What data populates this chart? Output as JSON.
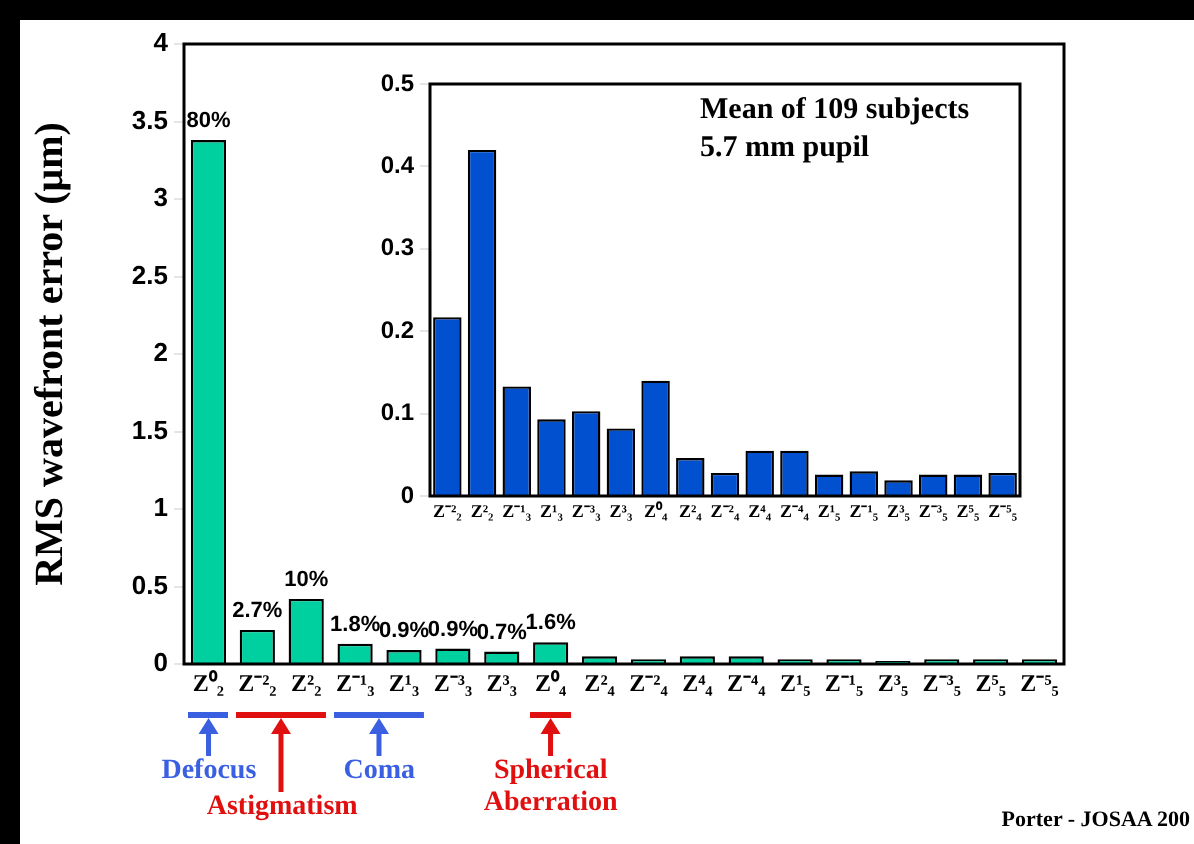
{
  "chart_data": [
    {
      "type": "bar",
      "ylabel": "RMS wavefront error (μm)",
      "categories": [
        "Z⁰₂",
        "Z⁻²₂",
        "Z²₂",
        "Z⁻¹₃",
        "Z¹₃",
        "Z⁻³₃",
        "Z³₃",
        "Z⁰₄",
        "Z²₄",
        "Z⁻²₄",
        "Z⁴₄",
        "Z⁻⁴₄",
        "Z¹₅",
        "Z⁻¹₅",
        "Z³₅",
        "Z⁻³₅",
        "Z⁵₅",
        "Z⁻⁵₅"
      ],
      "values": [
        3.38,
        0.22,
        0.42,
        0.13,
        0.09,
        0.1,
        0.08,
        0.14,
        0.05,
        0.03,
        0.05,
        0.05,
        0.03,
        0.03,
        0.02,
        0.03,
        0.03,
        0.03
      ],
      "color": "#00d0a0",
      "ylim": [
        0,
        4
      ],
      "yticks": [
        0,
        0.5,
        1,
        1.5,
        2,
        2.5,
        3,
        3.5,
        4
      ],
      "annotations": [
        "Defocus",
        "Astigmatism",
        "Coma",
        "Spherical Aberration",
        "Porter - JOSAA  200",
        {
          "text": "80%",
          "x": "Z⁰₂",
          "y": 3.38
        },
        {
          "text": "2.7%",
          "x": "Z⁻²₂",
          "y": 0.22
        },
        {
          "text": "10%",
          "x": "Z²₂",
          "y": 0.42
        },
        {
          "text": "1.8%",
          "x": "Z⁻¹₃",
          "y": 0.13
        },
        {
          "text": "0.9%",
          "x": "Z¹₃",
          "y": 0.09
        },
        {
          "text": "0.9%",
          "x": "Z⁻³₃",
          "y": 0.1
        },
        {
          "text": "0.7%",
          "x": "Z³₃",
          "y": 0.08
        },
        {
          "text": "1.6%",
          "x": "Z⁰₄",
          "y": 0.14
        }
      ]
    },
    {
      "type": "bar",
      "categories": [
        "Z⁻²₂",
        "Z²₂",
        "Z⁻¹₃",
        "Z¹₃",
        "Z⁻³₃",
        "Z³₃",
        "Z⁰₄",
        "Z²₄",
        "Z⁻²₄",
        "Z⁴₄",
        "Z⁻⁴₄",
        "Z¹₅",
        "Z⁻¹₅",
        "Z³₅",
        "Z⁻³₅",
        "Z⁵₅",
        "Z⁻⁵₅"
      ],
      "values": [
        0.217,
        0.42,
        0.133,
        0.093,
        0.103,
        0.082,
        0.14,
        0.046,
        0.028,
        0.055,
        0.055,
        0.026,
        0.03,
        0.019,
        0.026,
        0.026,
        0.028
      ],
      "color": "#0050d0",
      "ylim": [
        0,
        0.5
      ],
      "yticks": [
        0,
        0.1,
        0.2,
        0.3,
        0.4,
        0.5
      ],
      "annotations": [
        "Mean of 109 subjects",
        "5.7 mm pupil"
      ]
    }
  ]
}
